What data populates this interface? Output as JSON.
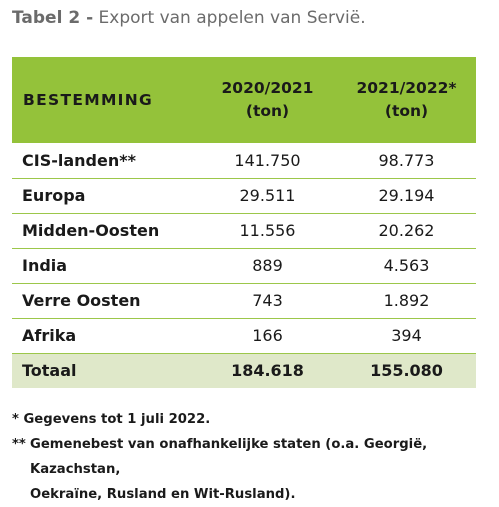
{
  "caption": {
    "lead": "Tabel 2 -",
    "text": " Export van appelen van Servië."
  },
  "table": {
    "headers": {
      "destination": "BESTEMMING",
      "col1_line1": "2020/2021",
      "col1_line2": "(ton)",
      "col2_line1": "2021/2022*",
      "col2_line2": "(ton)"
    },
    "rows": [
      {
        "name": "CIS-landen**",
        "v2021": "141.750",
        "v2022": "98.773"
      },
      {
        "name": "Europa",
        "v2021": "29.511",
        "v2022": "29.194"
      },
      {
        "name": "Midden-Oosten",
        "v2021": "11.556",
        "v2022": "20.262"
      },
      {
        "name": "India",
        "v2021": "889",
        "v2022": "4.563"
      },
      {
        "name": "Verre Oosten",
        "v2021": "743",
        "v2022": "1.892"
      },
      {
        "name": "Afrika",
        "v2021": "166",
        "v2022": "394"
      }
    ],
    "total": {
      "name": "Totaal",
      "v2021": "184.618",
      "v2022": "155.080"
    }
  },
  "footnotes": {
    "fn1": "* Gegevens tot 1 juli 2022.",
    "fn2_mark": "**",
    "fn2_line1": "Gemenebest van onafhankelijke staten (o.a. Georgië, Kazachstan,",
    "fn2_line2": "Oekraïne, Rusland en Wit-Rusland)."
  },
  "colors": {
    "header_green": "#94c23a",
    "total_green": "#dfe8c9",
    "row_line": "#9cc74a",
    "caption_grey": "#6b6b6b"
  }
}
